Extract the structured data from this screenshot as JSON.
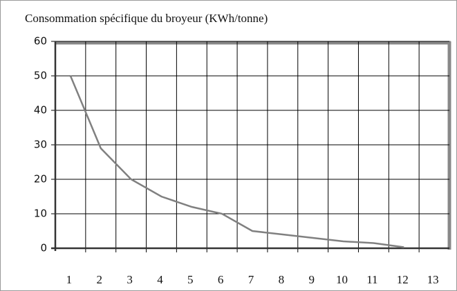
{
  "chart_data": {
    "type": "line",
    "title": "Consommation spécifique du broyeur (KWh/tonne)",
    "categories": [
      "1",
      "2",
      "3",
      "4",
      "5",
      "6",
      "7",
      "8",
      "9",
      "10",
      "11",
      "12",
      "13"
    ],
    "values": [
      50,
      29,
      20,
      15,
      12,
      10,
      5,
      4,
      3,
      2,
      1.5,
      0.3,
      null
    ],
    "color": "#808080",
    "ylim": [
      0,
      60
    ],
    "yticks": [
      0,
      10,
      20,
      30,
      40,
      50,
      60
    ],
    "grid": true
  }
}
